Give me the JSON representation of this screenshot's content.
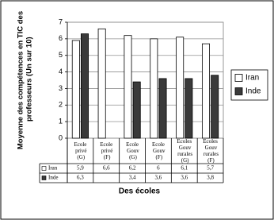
{
  "chart_data": {
    "type": "bar",
    "y_label": "Moyenne des compétences en TIC des professeurs (Un sur 10)",
    "x_label": "Des écoles",
    "categories": [
      "Ecole privé (G)",
      "Ecole privé (F)",
      "Ecole Gouv (G)",
      "Ecole Gouv (F)",
      "Ecoles Gouv rurales (G)",
      "Ecoles Gouv rurales (F)"
    ],
    "series": [
      {
        "name": "Iran",
        "color": "#ffffff",
        "values": [
          5.9,
          6.6,
          6.2,
          6,
          6.1,
          5.7
        ],
        "value_labels": [
          "5,9",
          "6,6",
          "6,2",
          "6",
          "6,1",
          "5,7"
        ]
      },
      {
        "name": "Inde",
        "color": "#3a3a3a",
        "values": [
          6.3,
          null,
          3.4,
          3.6,
          3.6,
          3.8
        ],
        "value_labels": [
          "6,3",
          null,
          "3,4",
          "3,6",
          "3,6",
          "3,8"
        ]
      }
    ],
    "ylim": [
      0,
      7
    ],
    "yticks": [
      0,
      1,
      2,
      3,
      4,
      5,
      6,
      7
    ],
    "grid": true,
    "legend": "right"
  }
}
